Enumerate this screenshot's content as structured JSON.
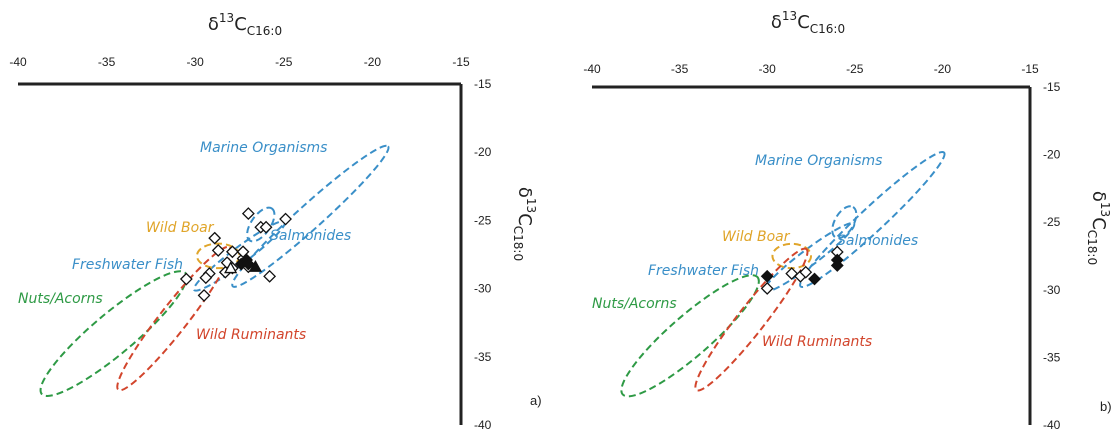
{
  "colors": {
    "marine": "#3a8fc8",
    "salmonides": "#3a8fc8",
    "freshwater": "#3a8fc8",
    "boar": "#e0a52a",
    "nuts": "#2e9a45",
    "ruminants": "#d2452c",
    "axis": "#222222"
  },
  "chart_data": [
    {
      "type": "scatter",
      "panel_label": "a)",
      "xlabel": {
        "base": "δ",
        "sup": "13",
        "main": "C",
        "sub": "C16:0"
      },
      "ylabel": {
        "base": "δ",
        "sup": "13",
        "main": "C",
        "sub": "C18:0"
      },
      "xlim": [
        -40,
        -15
      ],
      "ylim": [
        -40,
        -15
      ],
      "x_ticks": [
        "-40",
        "-35",
        "-30",
        "-25",
        "-20",
        "-15"
      ],
      "y_ticks": [
        "-15",
        "-20",
        "-25",
        "-30",
        "-35",
        "-40"
      ],
      "regions": [
        {
          "key": "marine",
          "label": "Marine Organisms",
          "cx": -23.5,
          "cy": -24.7,
          "a": 5.9,
          "b": 0.9,
          "angle": -42
        },
        {
          "key": "salmonides",
          "label": "Salmonides",
          "cx": -26.3,
          "cy": -25.3,
          "a": 1.1,
          "b": 0.7,
          "angle": -55
        },
        {
          "key": "freshwater",
          "label": "Freshwater Fish",
          "cx": -27.5,
          "cy": -27.6,
          "a": 3.2,
          "b": 0.6,
          "angle": -37
        },
        {
          "key": "boar",
          "label": "Wild Boar",
          "cx": -28.7,
          "cy": -27.6,
          "a": 1.2,
          "b": 0.9,
          "angle": 0
        },
        {
          "key": "nuts",
          "label": "Nuts/Acorns",
          "cx": -34.6,
          "cy": -33.3,
          "a": 5.3,
          "b": 1.5,
          "angle": -40
        },
        {
          "key": "ruminants",
          "label": "Wild Ruminants",
          "cx": -31.2,
          "cy": -32.2,
          "a": 5.1,
          "b": 1.0,
          "angle": -52
        }
      ],
      "series": [
        {
          "marker": "open-diamond",
          "points": [
            [
              -27.0,
              -24.5
            ],
            [
              -26.3,
              -25.5
            ],
            [
              -26.0,
              -25.5
            ],
            [
              -24.9,
              -24.9
            ],
            [
              -28.9,
              -26.3
            ],
            [
              -28.7,
              -27.2
            ],
            [
              -27.9,
              -27.3
            ],
            [
              -27.3,
              -27.8
            ],
            [
              -28.2,
              -28.1
            ],
            [
              -27.9,
              -28.5
            ],
            [
              -28.3,
              -28.8
            ],
            [
              -29.2,
              -28.9
            ],
            [
              -29.4,
              -29.2
            ],
            [
              -30.5,
              -29.3
            ],
            [
              -29.5,
              -30.5
            ],
            [
              -25.8,
              -29.1
            ],
            [
              -27.0,
              -28.4
            ],
            [
              -27.3,
              -27.3
            ]
          ]
        },
        {
          "marker": "filled-diamond",
          "points": [
            [
              -27.4,
              -28.2
            ],
            [
              -27.1,
              -27.9
            ],
            [
              -27.0,
              -28.2
            ]
          ]
        },
        {
          "marker": "open-triangle",
          "points": [
            [
              -28.0,
              -28.5
            ]
          ]
        },
        {
          "marker": "filled-triangle",
          "points": [
            [
              -26.6,
              -28.4
            ]
          ]
        }
      ]
    },
    {
      "type": "scatter",
      "panel_label": "b)",
      "xlabel": {
        "base": "δ",
        "sup": "13",
        "main": "C",
        "sub": "C16:0"
      },
      "ylabel": {
        "base": "δ",
        "sup": "13",
        "main": "C",
        "sub": "C18:0"
      },
      "xlim": [
        -40,
        -15
      ],
      "ylim": [
        -40,
        -15
      ],
      "x_ticks": [
        "-40",
        "-35",
        "-30",
        "-25",
        "-20",
        "-15"
      ],
      "y_ticks": [
        "-15",
        "-20",
        "-25",
        "-30",
        "-35",
        "-40"
      ],
      "regions": [
        {
          "key": "marine",
          "label": "Marine Organisms",
          "cx": -24.0,
          "cy": -24.8,
          "a": 5.6,
          "b": 0.9,
          "angle": -43
        },
        {
          "key": "salmonides",
          "label": "Salmonides",
          "cx": -25.6,
          "cy": -25.0,
          "a": 1.0,
          "b": 0.7,
          "angle": -60
        },
        {
          "key": "freshwater",
          "label": "Freshwater Fish",
          "cx": -27.6,
          "cy": -27.6,
          "a": 3.2,
          "b": 0.6,
          "angle": -37
        },
        {
          "key": "boar",
          "label": "Wild Boar",
          "cx": -28.6,
          "cy": -27.5,
          "a": 1.1,
          "b": 0.9,
          "angle": 0
        },
        {
          "key": "nuts",
          "label": "Nuts/Acorns",
          "cx": -34.4,
          "cy": -33.4,
          "a": 5.1,
          "b": 1.5,
          "angle": -41
        },
        {
          "key": "ruminants",
          "label": "Wild Ruminants",
          "cx": -30.9,
          "cy": -32.2,
          "a": 5.1,
          "b": 1.0,
          "angle": -52
        }
      ],
      "series": [
        {
          "marker": "open-diamond",
          "points": [
            [
              -30.0,
              -29.9
            ],
            [
              -28.6,
              -28.8
            ],
            [
              -28.1,
              -29.0
            ],
            [
              -27.8,
              -28.7
            ],
            [
              -26.0,
              -27.2
            ]
          ]
        },
        {
          "marker": "filled-diamond",
          "points": [
            [
              -30.0,
              -29.0
            ],
            [
              -27.3,
              -29.2
            ],
            [
              -26.0,
              -27.8
            ],
            [
              -26.0,
              -28.2
            ]
          ]
        }
      ]
    }
  ]
}
